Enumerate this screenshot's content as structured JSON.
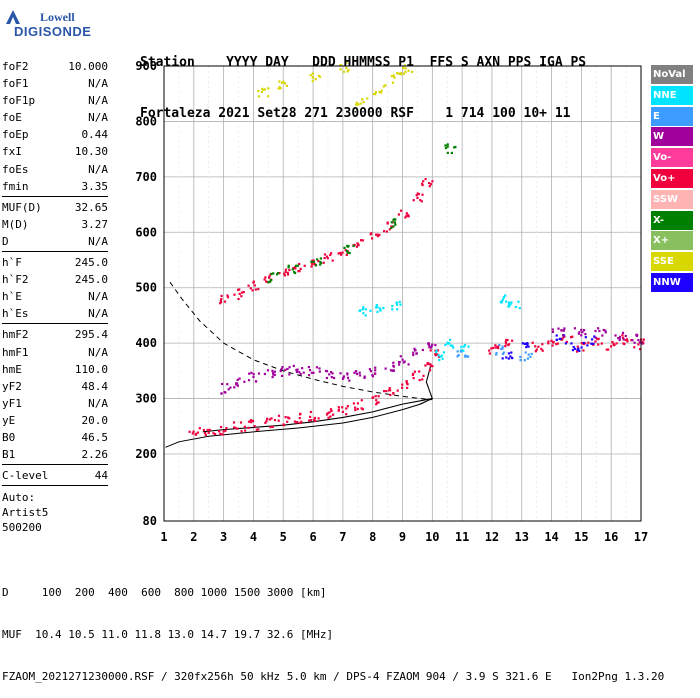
{
  "logo": {
    "line1": "Lowell",
    "line2": "DIGISONDE"
  },
  "header": {
    "line1": "Station    YYYY DAY   DDD HHMMSS P1  FFS S AXN PPS IGA PS",
    "line2": "Fortaleza 2021 Set28 271 230000 RSF    1 714 100 10+ 11"
  },
  "params": {
    "group1": [
      [
        "foF2",
        "10.000"
      ],
      [
        "foF1",
        "N/A"
      ],
      [
        "foF1p",
        "N/A"
      ],
      [
        "foE",
        "N/A"
      ],
      [
        "foEp",
        "0.44"
      ],
      [
        "fxI",
        "10.30"
      ],
      [
        "foEs",
        "N/A"
      ],
      [
        "fmin",
        "3.35"
      ]
    ],
    "group2": [
      [
        "MUF(D)",
        "32.65"
      ],
      [
        "M(D)",
        "3.27"
      ],
      [
        "D",
        "N/A"
      ]
    ],
    "group3": [
      [
        "h`F",
        "245.0"
      ],
      [
        "h`F2",
        "245.0"
      ],
      [
        "h`E",
        "N/A"
      ],
      [
        "h`Es",
        "N/A"
      ]
    ],
    "group4": [
      [
        "hmF2",
        "295.4"
      ],
      [
        "hmF1",
        "N/A"
      ],
      [
        "hmE",
        "110.0"
      ],
      [
        "yF2",
        "48.4"
      ],
      [
        "yF1",
        "N/A"
      ],
      [
        "yE",
        "20.0"
      ],
      [
        "B0",
        "46.5"
      ],
      [
        "B1",
        "2.26"
      ]
    ],
    "group5": [
      [
        "C-level",
        "44"
      ]
    ],
    "auto_lines": [
      "Auto:",
      "Artist5",
      "500200"
    ]
  },
  "legend": [
    {
      "label": "NoVal",
      "bg": "#808080",
      "fg": "#ffffff"
    },
    {
      "label": "NNE",
      "bg": "#00e5ff",
      "fg": "#ffffff"
    },
    {
      "label": "E",
      "bg": "#3c9cff",
      "fg": "#ffffff"
    },
    {
      "label": "W",
      "bg": "#a0009c",
      "fg": "#ffffff"
    },
    {
      "label": "Vo-",
      "bg": "#ff3c9c",
      "fg": "#ffffff"
    },
    {
      "label": "Vo+",
      "bg": "#f0003c",
      "fg": "#ffffff"
    },
    {
      "label": "SSW",
      "bg": "#ffb4b4",
      "fg": "#ffffff"
    },
    {
      "label": "X-",
      "bg": "#008000",
      "fg": "#ffffff"
    },
    {
      "label": "X+",
      "bg": "#88c060",
      "fg": "#ffffff"
    },
    {
      "label": "SSE",
      "bg": "#d8d800",
      "fg": "#ffffff"
    },
    {
      "label": "NNW",
      "bg": "#1e00ff",
      "fg": "#ffffff"
    }
  ],
  "footer": {
    "line1": "D     100  200  400  600  800 1000 1500 3000 [km]",
    "line2": "MUF  10.4 10.5 11.0 11.8 13.0 14.7 19.7 32.6 [MHz]",
    "line3": "FZAOM_2021271230000.RSF / 320fx256h 50 kHz 5.0 km / DPS-4 FZAOM 904 / 3.9 S 321.6 E   Ion2Png 1.3.20"
  },
  "chart_data": {
    "type": "scatter",
    "x_ticks": [
      "1",
      "2",
      "3",
      "4",
      "5",
      "6",
      "7",
      "8",
      "9",
      "10",
      "11",
      "12",
      "13",
      "14",
      "15",
      "16",
      "17"
    ],
    "y_ticks": [
      "80",
      "200",
      "300",
      "400",
      "500",
      "600",
      "700",
      "800",
      "900"
    ],
    "xlim": [
      1,
      17
    ],
    "ylim": [
      80,
      900
    ],
    "grid": true,
    "y_axis_note": "virtual height axis, non-linear below 200 km",
    "series": [
      {
        "color": "#d8d800",
        "points": [
          [
            4.3,
            855
          ],
          [
            5.0,
            868
          ],
          [
            6.0,
            880
          ],
          [
            7.0,
            900
          ],
          [
            7.6,
            840
          ],
          [
            8.2,
            860
          ],
          [
            8.8,
            880
          ],
          [
            9.1,
            895
          ]
        ]
      },
      {
        "color": "#f0003c",
        "points": [
          [
            3.0,
            480
          ],
          [
            3.5,
            490
          ],
          [
            4.0,
            505
          ],
          [
            4.5,
            518
          ],
          [
            5.0,
            530
          ],
          [
            5.5,
            538
          ],
          [
            6.0,
            548
          ],
          [
            6.5,
            555
          ],
          [
            7.0,
            568
          ],
          [
            7.5,
            580
          ],
          [
            8.0,
            595
          ],
          [
            8.5,
            612
          ],
          [
            9.0,
            635
          ],
          [
            9.5,
            665
          ],
          [
            9.8,
            690
          ]
        ]
      },
      {
        "color": "#008000",
        "points": [
          [
            4.6,
            520
          ],
          [
            5.3,
            536
          ],
          [
            6.1,
            550
          ],
          [
            7.2,
            572
          ],
          [
            8.6,
            618
          ],
          [
            10.6,
            752
          ]
        ]
      },
      {
        "color": "#f0003c",
        "points": [
          [
            2.0,
            240
          ],
          [
            2.5,
            243
          ],
          [
            3.0,
            246
          ],
          [
            3.5,
            250
          ],
          [
            4.0,
            254
          ],
          [
            4.5,
            258
          ],
          [
            5.0,
            262
          ],
          [
            5.5,
            266
          ],
          [
            6.0,
            270
          ],
          [
            6.5,
            275
          ],
          [
            7.0,
            282
          ],
          [
            7.5,
            290
          ],
          [
            8.0,
            300
          ],
          [
            8.5,
            312
          ],
          [
            9.0,
            325
          ],
          [
            9.5,
            342
          ],
          [
            9.8,
            360
          ],
          [
            10.0,
            380
          ]
        ]
      },
      {
        "color": "#a0009c",
        "points": [
          [
            3.0,
            320
          ],
          [
            3.5,
            330
          ],
          [
            4.0,
            340
          ],
          [
            4.5,
            345
          ],
          [
            5.0,
            350
          ],
          [
            5.5,
            355
          ],
          [
            6.0,
            350
          ],
          [
            6.5,
            345
          ],
          [
            7.0,
            340
          ],
          [
            7.5,
            345
          ],
          [
            8.0,
            350
          ],
          [
            8.5,
            360
          ],
          [
            9.0,
            370
          ],
          [
            9.5,
            385
          ],
          [
            10.0,
            400
          ]
        ]
      },
      {
        "color": "#00e5ff",
        "points": [
          [
            7.7,
            460
          ],
          [
            8.2,
            465
          ],
          [
            8.8,
            470
          ],
          [
            10.2,
            380
          ],
          [
            10.6,
            400
          ],
          [
            11.0,
            390
          ],
          [
            12.4,
            480
          ],
          [
            12.7,
            470
          ]
        ]
      },
      {
        "color": "#3c9cff",
        "points": [
          [
            11.0,
            385
          ],
          [
            12.2,
            390
          ],
          [
            13.1,
            380
          ]
        ]
      },
      {
        "color": "#f0003c",
        "points": [
          [
            12.0,
            390
          ],
          [
            12.6,
            400
          ],
          [
            13.5,
            395
          ],
          [
            14.0,
            400
          ],
          [
            14.5,
            410
          ],
          [
            15.0,
            395
          ],
          [
            15.5,
            405
          ],
          [
            16.0,
            398
          ],
          [
            16.5,
            408
          ],
          [
            16.9,
            400
          ]
        ]
      },
      {
        "color": "#1e00ff",
        "points": [
          [
            12.5,
            380
          ],
          [
            13.2,
            395
          ],
          [
            14.3,
            410
          ],
          [
            14.8,
            395
          ],
          [
            15.2,
            405
          ]
        ]
      },
      {
        "color": "#a0009c",
        "points": [
          [
            14.2,
            420
          ],
          [
            14.9,
            425
          ],
          [
            15.6,
            420
          ],
          [
            16.3,
            415
          ],
          [
            16.8,
            410
          ]
        ]
      }
    ]
  }
}
